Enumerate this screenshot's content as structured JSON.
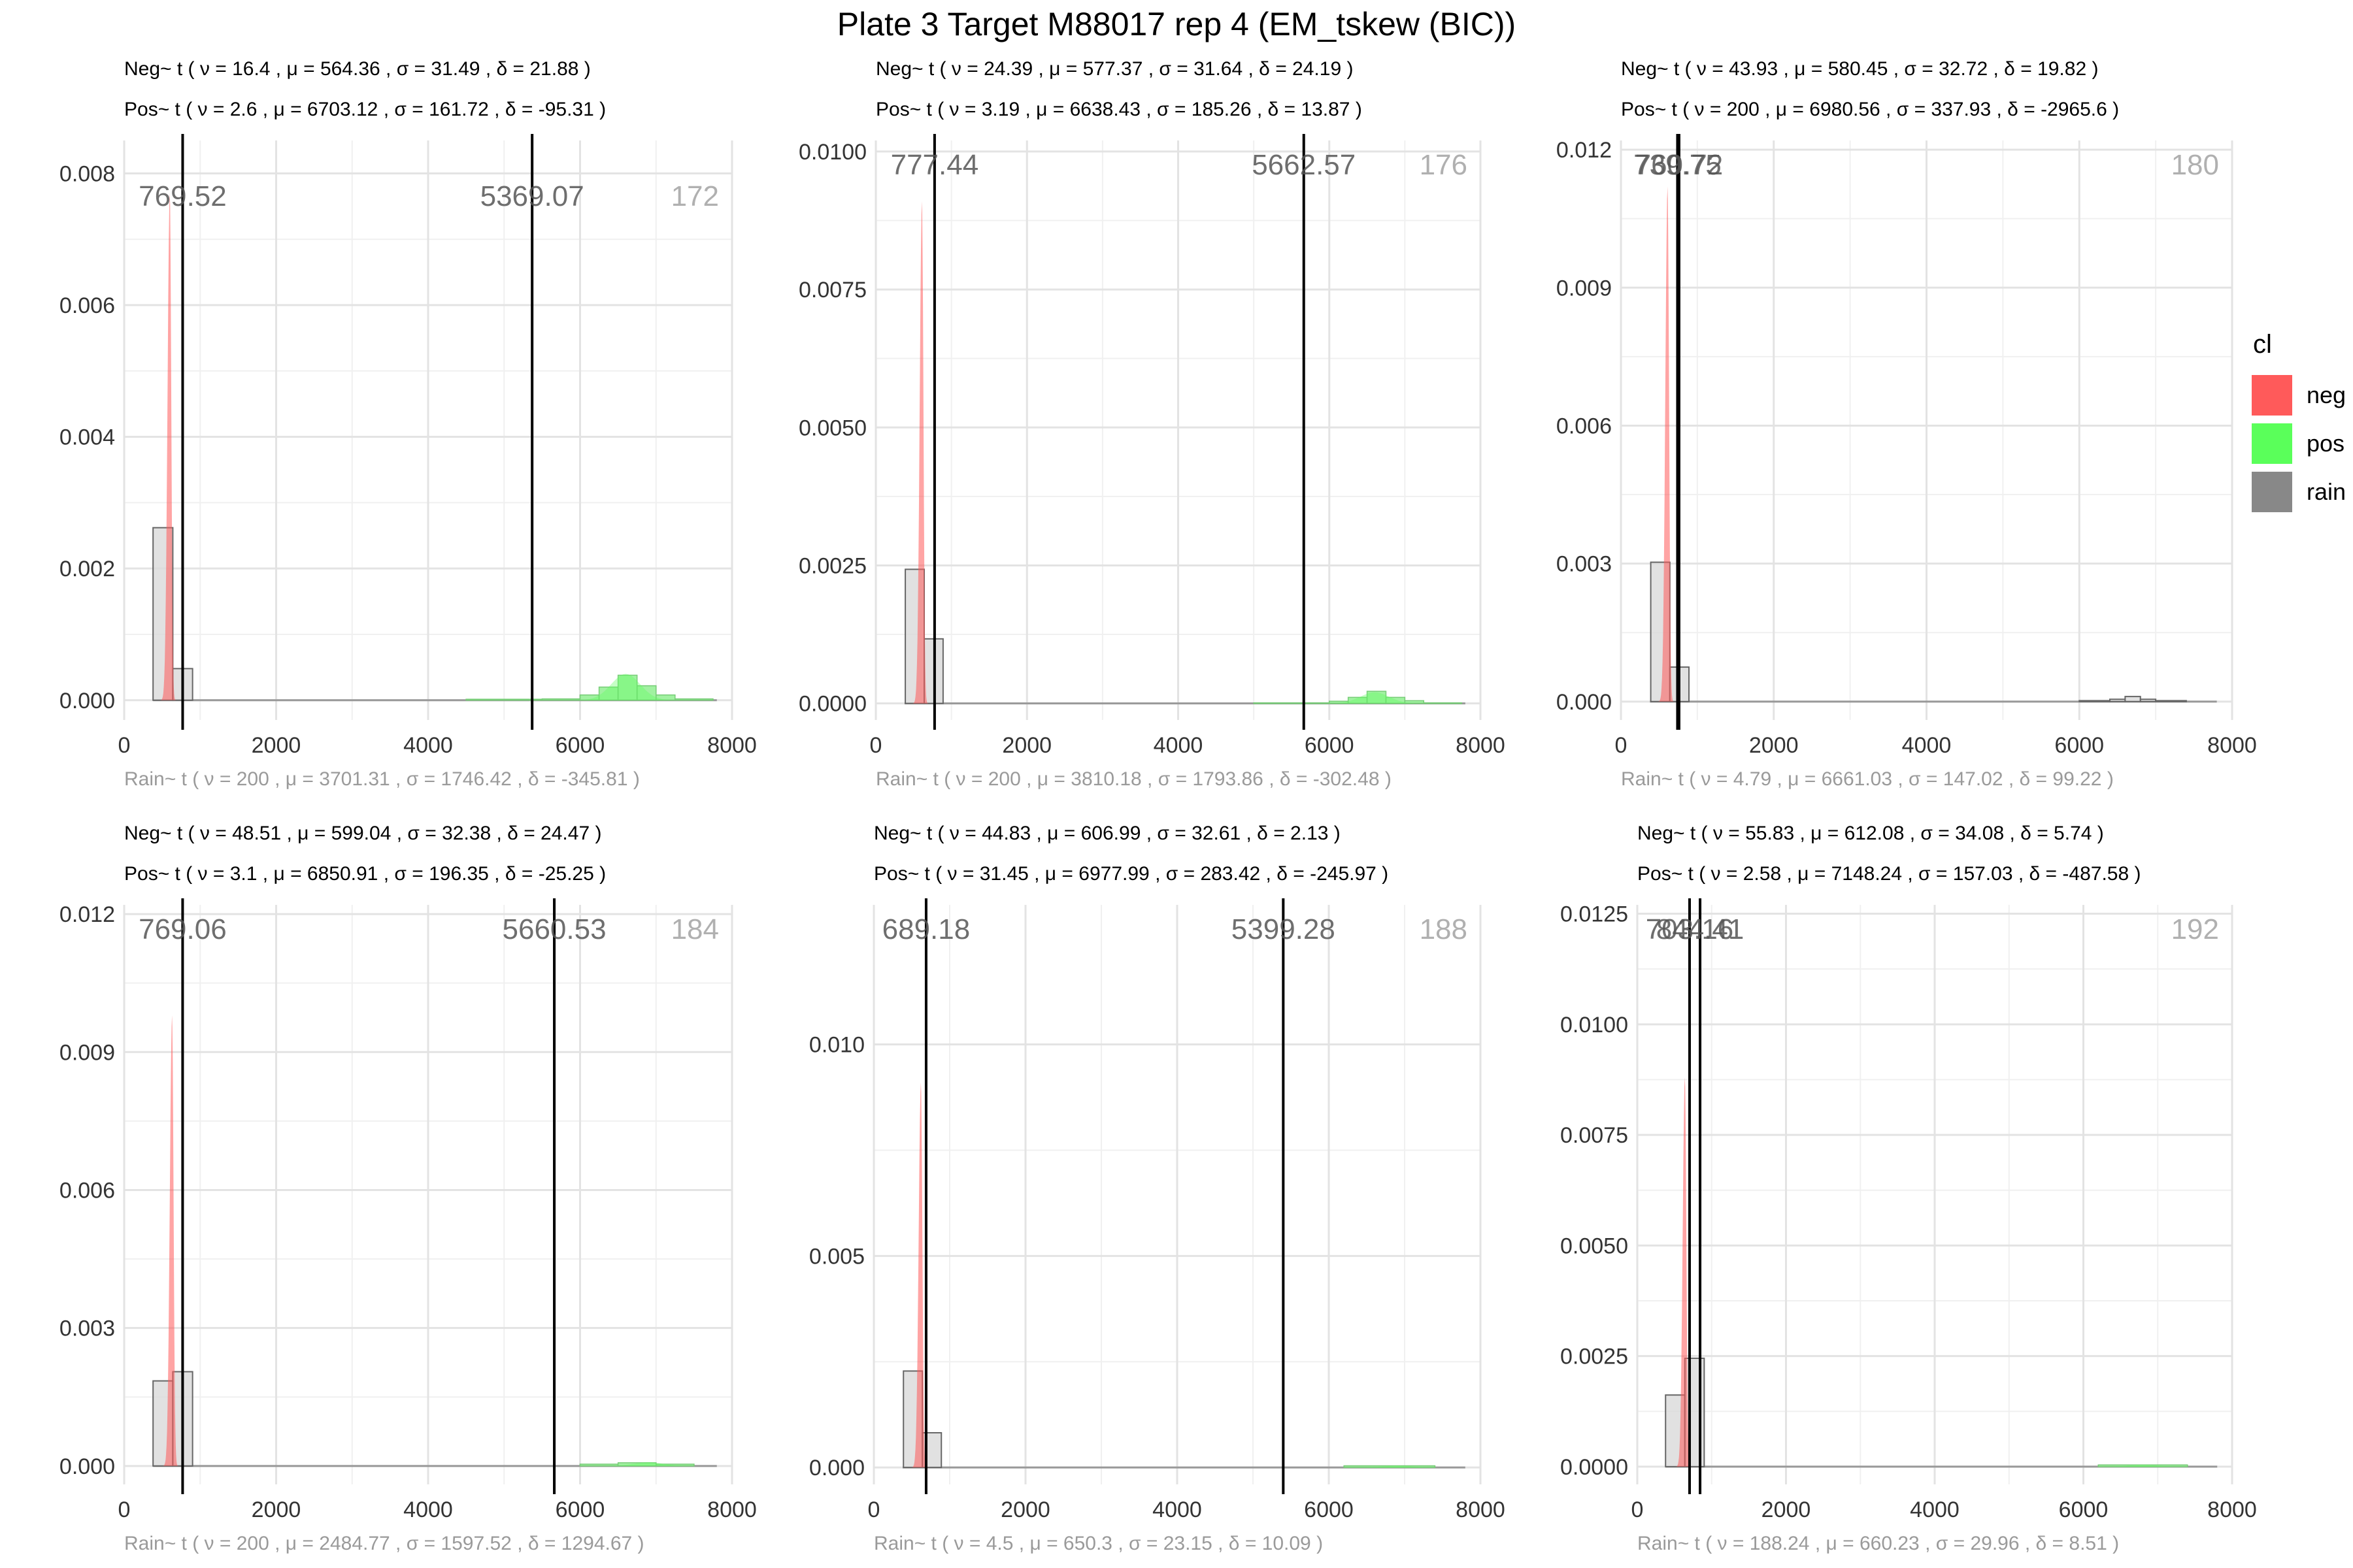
{
  "title": "Plate 3 Target M88017 rep 4 (EM_tskew (BIC))",
  "colors": {
    "neg": "#ff5a5a",
    "pos": "#5aff5a",
    "rain": "#888888"
  },
  "legend": {
    "title": "cl",
    "items": [
      {
        "key": "neg",
        "label": "neg"
      },
      {
        "key": "pos",
        "label": "pos"
      },
      {
        "key": "rain",
        "label": "rain"
      }
    ]
  },
  "chart_data": [
    {
      "type": "histogram",
      "neg_text": "Neg~ t ( ν = 16.4 , μ = 564.36 , σ = 31.49 , δ = 21.88 )",
      "pos_text": "Pos~ t ( ν = 2.6 , μ = 6703.12 , σ = 161.72 , δ = -95.31 )",
      "rain_text": "Rain~ t ( ν = 200 , μ = 3701.31 , σ = 1746.42 , δ = -345.81 )",
      "xlim": [
        0,
        8000
      ],
      "ylim": [
        -0.0003,
        0.0085
      ],
      "xticks": [
        0,
        2000,
        4000,
        6000,
        8000
      ],
      "xtick_labels": [
        "0",
        "2000",
        "4000",
        "6000",
        "8000"
      ],
      "yticks": [
        0,
        0.002,
        0.004,
        0.006,
        0.008
      ],
      "ytick_labels": [
        "0.000",
        "0.002",
        "0.004",
        "0.006",
        "0.008"
      ],
      "thresholds": [
        769.52,
        5369.07
      ],
      "threshold_labels": [
        "769.52",
        "5369.07"
      ],
      "count_label": "172",
      "neg_peak": {
        "center": 600,
        "height": 0.0077
      },
      "pos_peak": {
        "center": 6600,
        "height": 0.0004
      },
      "gray_bars": [
        {
          "x0": 380,
          "x1": 640,
          "h": 0.00262
        },
        {
          "x0": 640,
          "x1": 900,
          "h": 0.00048
        }
      ],
      "green_bars": [
        {
          "x0": 4500,
          "x1": 5500,
          "h": 1.5e-05
        },
        {
          "x0": 5500,
          "x1": 6000,
          "h": 2e-05
        },
        {
          "x0": 6000,
          "x1": 6250,
          "h": 8e-05
        },
        {
          "x0": 6250,
          "x1": 6500,
          "h": 0.0002
        },
        {
          "x0": 6500,
          "x1": 6750,
          "h": 0.00038
        },
        {
          "x0": 6750,
          "x1": 7000,
          "h": 0.00022
        },
        {
          "x0": 7000,
          "x1": 7250,
          "h": 8e-05
        },
        {
          "x0": 7250,
          "x1": 7750,
          "h": 2e-05
        }
      ]
    },
    {
      "type": "histogram",
      "neg_text": "Neg~ t ( ν = 24.39 , μ = 577.37 , σ = 31.64 , δ = 24.19 )",
      "pos_text": "Pos~ t ( ν = 3.19 , μ = 6638.43 , σ = 185.26 , δ = 13.87 )",
      "rain_text": "Rain~ t ( ν = 200 , μ = 3810.18 , σ = 1793.86 , δ = -302.48 )",
      "xlim": [
        0,
        8000
      ],
      "ylim": [
        -0.0003,
        0.0102
      ],
      "xticks": [
        0,
        2000,
        4000,
        6000,
        8000
      ],
      "xtick_labels": [
        "0",
        "2000",
        "4000",
        "6000",
        "8000"
      ],
      "yticks": [
        0,
        0.0025,
        0.005,
        0.0075,
        0.01
      ],
      "ytick_labels": [
        "0.0000",
        "0.0025",
        "0.0050",
        "0.0075",
        "0.0100"
      ],
      "thresholds": [
        777.44,
        5662.57
      ],
      "threshold_labels": [
        "777.44",
        "5662.57"
      ],
      "count_label": "176",
      "neg_peak": {
        "center": 610,
        "height": 0.0091
      },
      "pos_peak": {
        "center": 6600,
        "height": 0.0002
      },
      "gray_bars": [
        {
          "x0": 390,
          "x1": 640,
          "h": 0.00243
        },
        {
          "x0": 640,
          "x1": 890,
          "h": 0.00117
        }
      ],
      "green_bars": [
        {
          "x0": 5000,
          "x1": 6000,
          "h": 1e-05
        },
        {
          "x0": 6000,
          "x1": 6250,
          "h": 4e-05
        },
        {
          "x0": 6250,
          "x1": 6500,
          "h": 0.00011
        },
        {
          "x0": 6500,
          "x1": 6750,
          "h": 0.00022
        },
        {
          "x0": 6750,
          "x1": 7000,
          "h": 0.00011
        },
        {
          "x0": 7000,
          "x1": 7250,
          "h": 5e-05
        },
        {
          "x0": 7250,
          "x1": 7750,
          "h": 1e-05
        }
      ]
    },
    {
      "type": "histogram",
      "neg_text": "Neg~ t ( ν = 43.93 , μ = 580.45 , σ = 32.72 , δ = 19.82 )",
      "pos_text": "Pos~ t ( ν = 200 , μ = 6980.56 , σ = 337.93 , δ = -2965.6 )",
      "rain_text": "Rain~ t ( ν = 4.79 , μ = 6661.03 , σ = 147.02 , δ = 99.22 )",
      "xlim": [
        0,
        8000
      ],
      "ylim": [
        -0.0004,
        0.0122
      ],
      "xticks": [
        0,
        2000,
        4000,
        6000,
        8000
      ],
      "xtick_labels": [
        "0",
        "2000",
        "4000",
        "6000",
        "8000"
      ],
      "yticks": [
        0,
        0.003,
        0.006,
        0.009,
        0.012
      ],
      "ytick_labels": [
        "0.000",
        "0.003",
        "0.006",
        "0.009",
        "0.012"
      ],
      "thresholds": [
        739.75,
        760.72
      ],
      "threshold_labels": [
        "739.75",
        "760.72"
      ],
      "count_label": "180",
      "neg_peak": {
        "center": 610,
        "height": 0.0112
      },
      "pos_peak": null,
      "gray_bars": [
        {
          "x0": 390,
          "x1": 640,
          "h": 0.00303
        },
        {
          "x0": 640,
          "x1": 890,
          "h": 0.00075
        },
        {
          "x0": 6000,
          "x1": 6400,
          "h": 2e-05
        },
        {
          "x0": 6400,
          "x1": 6600,
          "h": 5e-05
        },
        {
          "x0": 6600,
          "x1": 6800,
          "h": 0.00011
        },
        {
          "x0": 6800,
          "x1": 7000,
          "h": 5e-05
        },
        {
          "x0": 7000,
          "x1": 7400,
          "h": 2e-05
        }
      ],
      "green_bars": []
    },
    {
      "type": "histogram",
      "neg_text": "Neg~ t ( ν = 48.51 , μ = 599.04 , σ = 32.38 , δ = 24.47 )",
      "pos_text": "Pos~ t ( ν = 3.1 , μ = 6850.91 , σ = 196.35 , δ = -25.25 )",
      "rain_text": "Rain~ t ( ν = 200 , μ = 2484.77 , σ = 1597.52 , δ = 1294.67 )",
      "xlim": [
        0,
        8000
      ],
      "ylim": [
        -0.0004,
        0.0122
      ],
      "xticks": [
        0,
        2000,
        4000,
        6000,
        8000
      ],
      "xtick_labels": [
        "0",
        "2000",
        "4000",
        "6000",
        "8000"
      ],
      "yticks": [
        0,
        0.003,
        0.006,
        0.009,
        0.012
      ],
      "ytick_labels": [
        "0.000",
        "0.003",
        "0.006",
        "0.009",
        "0.012"
      ],
      "thresholds": [
        769.06,
        5660.53
      ],
      "threshold_labels": [
        "769.06",
        "5660.53"
      ],
      "count_label": "184",
      "neg_peak": {
        "center": 630,
        "height": 0.0098
      },
      "pos_peak": {
        "center": 6900,
        "height": 8e-05
      },
      "gray_bars": [
        {
          "x0": 380,
          "x1": 640,
          "h": 0.00185
        },
        {
          "x0": 640,
          "x1": 900,
          "h": 0.00205
        }
      ],
      "green_bars": [
        {
          "x0": 6000,
          "x1": 6500,
          "h": 4e-05
        },
        {
          "x0": 6500,
          "x1": 7000,
          "h": 7e-05
        },
        {
          "x0": 7000,
          "x1": 7500,
          "h": 4e-05
        }
      ]
    },
    {
      "type": "histogram",
      "neg_text": "Neg~ t ( ν = 44.83 , μ = 606.99 , σ = 32.61 , δ = 2.13 )",
      "pos_text": "Pos~ t ( ν = 31.45 , μ = 6977.99 , σ = 283.42 , δ = -245.97 )",
      "rain_text": "Rain~ t ( ν = 4.5 , μ = 650.3 , σ = 23.15 , δ = 10.09 )",
      "xlim": [
        0,
        8000
      ],
      "ylim": [
        -0.0004,
        0.0133
      ],
      "xticks": [
        0,
        2000,
        4000,
        6000,
        8000
      ],
      "xtick_labels": [
        "0",
        "2000",
        "4000",
        "6000",
        "8000"
      ],
      "yticks": [
        0,
        0.005,
        0.01
      ],
      "ytick_labels": [
        "0.000",
        "0.005",
        "0.010"
      ],
      "thresholds": [
        689.18,
        5399.28
      ],
      "threshold_labels": [
        "689.18",
        "5399.28"
      ],
      "count_label": "188",
      "neg_peak": {
        "center": 620,
        "height": 0.0091
      },
      "pos_peak": {
        "center": 6900,
        "height": 4e-05
      },
      "gray_bars": [
        {
          "x0": 390,
          "x1": 640,
          "h": 0.00228
        },
        {
          "x0": 640,
          "x1": 890,
          "h": 0.00082
        }
      ],
      "green_bars": [
        {
          "x0": 6200,
          "x1": 7400,
          "h": 4e-05
        }
      ]
    },
    {
      "type": "histogram",
      "neg_text": "Neg~ t ( ν = 55.83 , μ = 612.08 , σ = 34.08 , δ = 5.74 )",
      "pos_text": "Pos~ t ( ν = 2.58 , μ = 7148.24 , σ = 157.03 , δ = -487.58 )",
      "rain_text": "Rain~ t ( ν = 188.24 , μ = 660.23 , σ = 29.96 , δ = 8.51 )",
      "xlim": [
        0,
        8000
      ],
      "ylim": [
        -0.0004,
        0.0127
      ],
      "xticks": [
        0,
        2000,
        4000,
        6000,
        8000
      ],
      "xtick_labels": [
        "0",
        "2000",
        "4000",
        "6000",
        "8000"
      ],
      "yticks": [
        0,
        0.0025,
        0.005,
        0.0075,
        0.01,
        0.0125
      ],
      "ytick_labels": [
        "0.0000",
        "0.0025",
        "0.0050",
        "0.0075",
        "0.0100",
        "0.0125"
      ],
      "thresholds": [
        703.16,
        844.41
      ],
      "threshold_labels": [
        "703.16",
        "844.41"
      ],
      "count_label": "192",
      "neg_peak": {
        "center": 640,
        "height": 0.0088
      },
      "pos_peak": {
        "center": 6800,
        "height": 4e-05
      },
      "gray_bars": [
        {
          "x0": 380,
          "x1": 640,
          "h": 0.00162
        },
        {
          "x0": 640,
          "x1": 900,
          "h": 0.00245
        }
      ],
      "green_bars": [
        {
          "x0": 6200,
          "x1": 7400,
          "h": 4e-05
        }
      ]
    }
  ]
}
